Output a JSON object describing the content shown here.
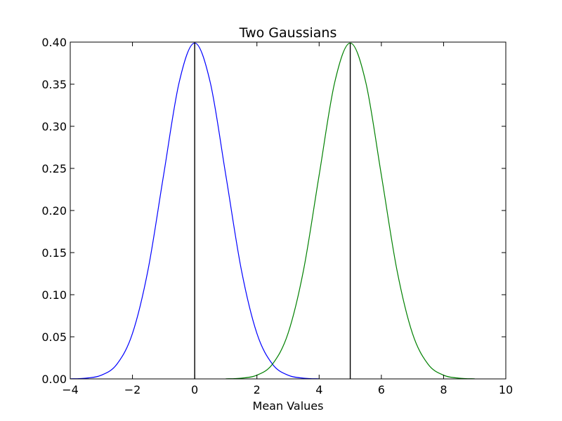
{
  "chart_data": {
    "type": "line",
    "title": "Two Gaussians",
    "xlabel": "Mean Values",
    "ylabel": "",
    "xlim": [
      -4,
      10
    ],
    "ylim": [
      0,
      0.4
    ],
    "grid": false,
    "x_ticks": [
      -4,
      -2,
      0,
      2,
      4,
      6,
      8,
      10
    ],
    "x_tick_labels": [
      "−4",
      "−2",
      "0",
      "2",
      "4",
      "6",
      "8",
      "10"
    ],
    "y_ticks": [
      0.0,
      0.05,
      0.1,
      0.15,
      0.2,
      0.25,
      0.3,
      0.35,
      0.4
    ],
    "y_tick_labels": [
      "0.00",
      "0.05",
      "0.10",
      "0.15",
      "0.20",
      "0.25",
      "0.30",
      "0.35",
      "0.40"
    ],
    "series": [
      {
        "color": "#0000ff",
        "x": [
          -4.0,
          -3.5,
          -3.0,
          -2.5,
          -2.0,
          -1.5,
          -1.0,
          -0.5,
          0.0,
          0.5,
          1.0,
          1.5,
          2.0,
          2.5,
          3.0,
          3.5,
          4.0
        ],
        "y": [
          0.0001,
          0.0009,
          0.0044,
          0.0175,
          0.054,
          0.1295,
          0.242,
          0.3521,
          0.3989,
          0.3521,
          0.242,
          0.1295,
          0.054,
          0.0175,
          0.0044,
          0.0009,
          0.0001
        ]
      },
      {
        "color": "#008000",
        "x": [
          1.0,
          1.5,
          2.0,
          2.5,
          3.0,
          3.5,
          4.0,
          4.5,
          5.0,
          5.5,
          6.0,
          6.5,
          7.0,
          7.5,
          8.0,
          8.5,
          9.0
        ],
        "y": [
          0.0001,
          0.0009,
          0.0044,
          0.0175,
          0.054,
          0.1295,
          0.242,
          0.3521,
          0.3989,
          0.3521,
          0.242,
          0.1295,
          0.054,
          0.0175,
          0.0044,
          0.0009,
          0.0001
        ]
      }
    ],
    "vertical_lines": [
      {
        "x": 0,
        "y_from": 0,
        "y_to": 0.3989,
        "color": "#000000"
      },
      {
        "x": 5,
        "y_from": 0,
        "y_to": 0.3989,
        "color": "#000000"
      }
    ]
  }
}
